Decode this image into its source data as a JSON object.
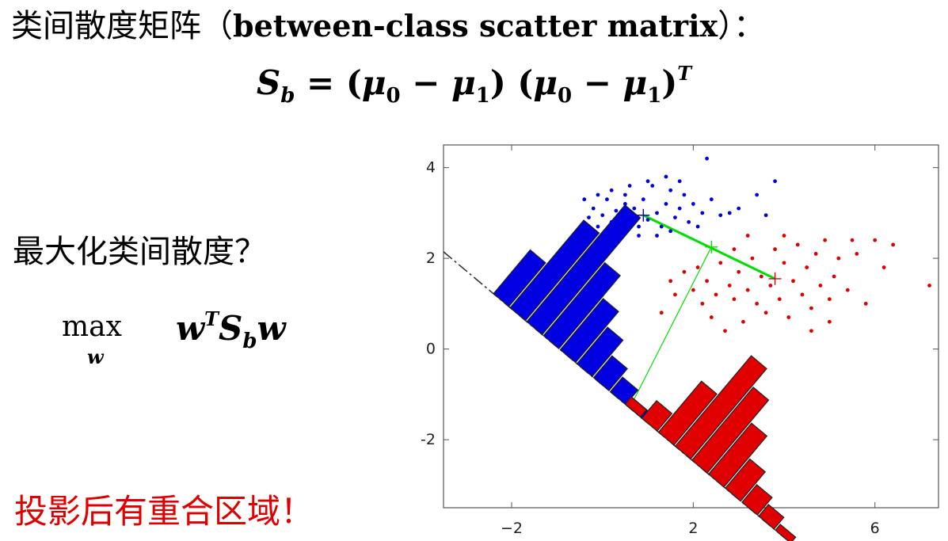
{
  "slide": {
    "heading_zh": "类间散度矩阵（",
    "heading_en": "between-class scatter matrix",
    "heading_end": "）：",
    "formula": {
      "lhs": "S",
      "lhs_sub": "b",
      "rhs1": " = (",
      "mu": "μ",
      "sub0": "0",
      "minus": " − ",
      "sub1": "1",
      "close": ")",
      "open": " (",
      "sup_T": "T"
    },
    "question": "最大化类间散度？",
    "objective": {
      "max": "max",
      "max_sub": "w",
      "w": "w",
      "sup_T": "T",
      "S": "S",
      "sub_b": "b",
      "w2": "w"
    },
    "warning": "投影后有重合区域！"
  },
  "chart_data": {
    "type": "scatter",
    "title": "",
    "xlabel": "",
    "ylabel": "",
    "xlim": [
      -3.5,
      7.4
    ],
    "ylim": [
      -3.5,
      4.5
    ],
    "x_ticks": [
      "−2",
      "2",
      "6"
    ],
    "x_tick_values": [
      -2,
      2,
      6
    ],
    "y_ticks": [
      "4",
      "2",
      "0",
      "-2"
    ],
    "y_tick_values": [
      4,
      2,
      0,
      -2
    ],
    "colors": {
      "class0": "#0000e0",
      "class1": "#e00000",
      "link": "#00e000",
      "projection_line": "#333333"
    },
    "means": {
      "class0": [
        0.9,
        2.95
      ],
      "class1": [
        3.8,
        1.55
      ],
      "midpoint": [
        2.4,
        2.25
      ]
    },
    "projection_direction": {
      "through": [
        0.6,
        -1.3
      ],
      "slope": -0.84
    },
    "series": [
      {
        "name": "",
        "values": [
          [
            -0.7,
            2.4
          ],
          [
            -0.5,
            2.6
          ],
          [
            -0.3,
            2.9
          ],
          [
            -0.2,
            3.1
          ],
          [
            -0.1,
            2.7
          ],
          [
            0.0,
            2.95
          ],
          [
            0.1,
            3.3
          ],
          [
            0.2,
            2.8
          ],
          [
            0.3,
            3.05
          ],
          [
            0.4,
            2.6
          ],
          [
            0.5,
            3.4
          ],
          [
            0.6,
            2.9
          ],
          [
            0.7,
            3.1
          ],
          [
            0.8,
            2.7
          ],
          [
            0.9,
            3.3
          ],
          [
            1.0,
            2.85
          ],
          [
            1.1,
            3.6
          ],
          [
            1.2,
            3.0
          ],
          [
            1.3,
            2.7
          ],
          [
            1.4,
            3.2
          ],
          [
            1.5,
            3.5
          ],
          [
            1.6,
            2.9
          ],
          [
            1.7,
            3.1
          ],
          [
            1.8,
            3.4
          ],
          [
            1.9,
            2.8
          ],
          [
            2.0,
            3.2
          ],
          [
            2.2,
            3.0
          ],
          [
            2.4,
            3.3
          ],
          [
            2.6,
            2.95
          ],
          [
            2.8,
            3.0
          ],
          [
            3.0,
            3.1
          ],
          [
            3.4,
            3.4
          ],
          [
            3.6,
            2.95
          ],
          [
            3.8,
            3.7
          ],
          [
            -0.4,
            3.3
          ],
          [
            -0.6,
            2.5
          ],
          [
            0.3,
            2.4
          ],
          [
            0.6,
            3.6
          ],
          [
            1.0,
            3.7
          ],
          [
            1.7,
            3.7
          ],
          [
            2.3,
            4.2
          ],
          [
            1.4,
            3.8
          ],
          [
            0.2,
            3.5
          ],
          [
            -0.1,
            3.4
          ],
          [
            0.8,
            2.5
          ],
          [
            1.2,
            2.5
          ],
          [
            2.1,
            2.7
          ],
          [
            0.5,
            3.2
          ],
          [
            1.5,
            2.6
          ],
          [
            -0.3,
            2.6
          ]
        ]
      },
      {
        "name": "",
        "values": [
          [
            1.3,
            0.8
          ],
          [
            1.5,
            1.5
          ],
          [
            1.6,
            1.2
          ],
          [
            1.8,
            1.7
          ],
          [
            2.0,
            1.3
          ],
          [
            2.1,
            1.8
          ],
          [
            2.2,
            1.0
          ],
          [
            2.3,
            1.5
          ],
          [
            2.4,
            0.7
          ],
          [
            2.5,
            1.2
          ],
          [
            2.6,
            1.9
          ],
          [
            2.7,
            0.4
          ],
          [
            2.8,
            1.4
          ],
          [
            2.9,
            1.1
          ],
          [
            3.0,
            1.7
          ],
          [
            3.1,
            0.6
          ],
          [
            3.2,
            1.3
          ],
          [
            3.3,
            2.0
          ],
          [
            3.4,
            1.0
          ],
          [
            3.5,
            1.6
          ],
          [
            3.6,
            0.8
          ],
          [
            3.7,
            1.4
          ],
          [
            3.8,
            2.2
          ],
          [
            3.9,
            1.1
          ],
          [
            4.0,
            1.9
          ],
          [
            4.1,
            0.7
          ],
          [
            4.2,
            1.5
          ],
          [
            4.3,
            2.3
          ],
          [
            4.4,
            1.2
          ],
          [
            4.5,
            1.8
          ],
          [
            4.6,
            0.9
          ],
          [
            4.7,
            2.1
          ],
          [
            4.8,
            1.4
          ],
          [
            4.9,
            2.4
          ],
          [
            5.0,
            0.6
          ],
          [
            5.1,
            1.6
          ],
          [
            5.2,
            2.0
          ],
          [
            5.4,
            1.3
          ],
          [
            5.6,
            2.1
          ],
          [
            5.8,
            1.0
          ],
          [
            6.0,
            2.4
          ],
          [
            6.2,
            1.8
          ],
          [
            6.4,
            2.3
          ],
          [
            7.2,
            1.4
          ],
          [
            5.0,
            1.1
          ],
          [
            4.6,
            0.4
          ],
          [
            3.2,
            2.5
          ],
          [
            2.9,
            2.2
          ],
          [
            4.0,
            2.5
          ],
          [
            5.5,
            2.4
          ]
        ]
      }
    ],
    "histogram_bins": {
      "class0": [
        0.3,
        0.6,
        0.8,
        0.5,
        0.35,
        0.25,
        0.15,
        0.1,
        0.05
      ],
      "class1": [
        0.05,
        0.12,
        0.35,
        0.62,
        0.5,
        0.35,
        0.2,
        0.12,
        0.08,
        0.04
      ]
    }
  }
}
